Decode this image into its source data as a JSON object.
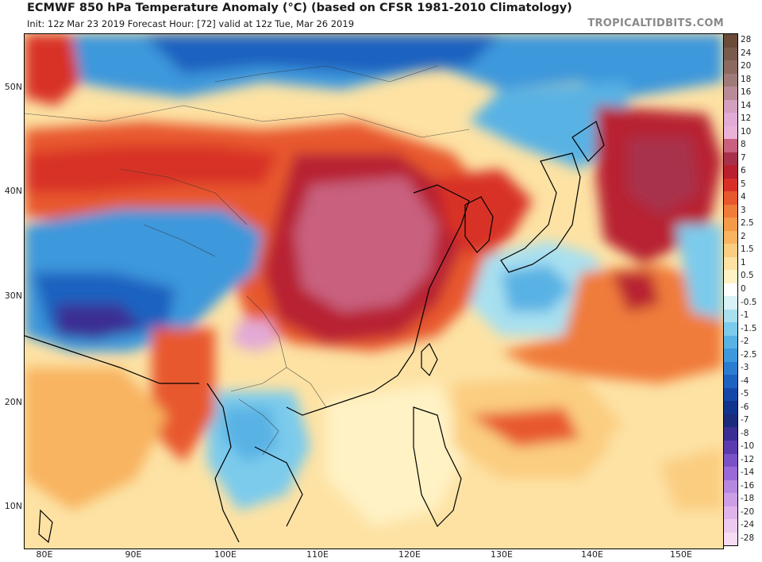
{
  "header": {
    "title": "ECMWF 850 hPa Temperature Anomaly (°C) (based on CFSR 1981-2010 Climatology)",
    "subtitle": "Init: 12z Mar 23 2019   Forecast Hour: [72]   valid at 12z Tue, Mar 26 2019",
    "watermark": "TROPICALTIDBITS.COM"
  },
  "axes": {
    "lat_labels": [
      "50N",
      "40N",
      "30N",
      "20N",
      "10N"
    ],
    "lon_labels": [
      "80E",
      "90E",
      "100E",
      "110E",
      "120E",
      "130E",
      "140E",
      "150E"
    ]
  },
  "colorbar": {
    "labels": [
      "28",
      "24",
      "20",
      "18",
      "16",
      "14",
      "12",
      "10",
      "8",
      "7",
      "6",
      "5",
      "4",
      "3",
      "2.5",
      "2",
      "1.5",
      "1",
      "0.5",
      "0",
      "-0.5",
      "-1",
      "-1.5",
      "-2",
      "-2.5",
      "-3",
      "-4",
      "-5",
      "-6",
      "-7",
      "-8",
      "-10",
      "-12",
      "-14",
      "-16",
      "-18",
      "-20",
      "-24",
      "-28"
    ],
    "colors": [
      "#6b4a3a",
      "#7a5a4c",
      "#8c6a60",
      "#a07a78",
      "#b98a98",
      "#d4a0c0",
      "#e2aad6",
      "#eab2d8",
      "#c8607e",
      "#a8304c",
      "#b82030",
      "#d83028",
      "#e8582e",
      "#f07c3a",
      "#f49a48",
      "#f8b460",
      "#fbcd80",
      "#fde2a4",
      "#fff2c4",
      "#ffffff",
      "#d8f2f8",
      "#a8e0f0",
      "#7ccbec",
      "#58b2e4",
      "#3e98dc",
      "#2a7cd0",
      "#1c62c0",
      "#1448a8",
      "#10348e",
      "#1a2a7c",
      "#3a2e94",
      "#5a3cb0",
      "#7a52c8",
      "#9a6ad8",
      "#b688e0",
      "#cc9ee6",
      "#e0b4ea",
      "#eecaf0",
      "#f6dcf4"
    ]
  },
  "map": {
    "ocean_labels": []
  }
}
